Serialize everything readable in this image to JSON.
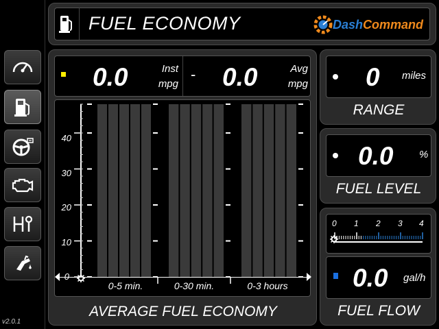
{
  "app": {
    "version": "v2.0.1",
    "brand_left": "Dash",
    "brand_right": "Command",
    "colors": {
      "accent_blue": "#2a7fd4",
      "accent_orange": "#f08a1c",
      "indicator_yellow": "#ffee00",
      "indicator_blue": "#1a6fe0"
    }
  },
  "header": {
    "title": "FUEL ECONOMY",
    "icon": "fuel-pump-icon"
  },
  "sidebar": {
    "items": [
      {
        "name": "gauge",
        "icon": "speedometer-icon",
        "active": false
      },
      {
        "name": "fuel",
        "icon": "fuel-pump-icon",
        "active": true
      },
      {
        "name": "driving",
        "icon": "steering-wheel-icon",
        "active": false
      },
      {
        "name": "engine",
        "icon": "engine-icon",
        "active": false
      },
      {
        "name": "transmission",
        "icon": "gear-shift-icon",
        "active": false
      },
      {
        "name": "fuel-nozzle",
        "icon": "fuel-nozzle-icon",
        "active": false
      }
    ]
  },
  "economy": {
    "inst_value": "0.0",
    "inst_label_1": "Inst",
    "inst_label_2": "mpg",
    "separator": "-",
    "avg_value": "0.0",
    "avg_label_1": "Avg",
    "avg_label_2": "mpg",
    "title": "AVERAGE FUEL ECONOMY",
    "y_ticks": [
      "40",
      "30",
      "20",
      "10",
      "0"
    ],
    "segments": [
      "0-5 min.",
      "0-30 min.",
      "0-3 hours"
    ]
  },
  "chart_data": {
    "type": "bar",
    "title": "AVERAGE FUEL ECONOMY",
    "ylim": [
      0,
      48
    ],
    "yticks": [
      0,
      10,
      20,
      30,
      40
    ],
    "series": [
      {
        "categories": [
          "0-5 min.",
          "0-30 min.",
          "0-3 hours"
        ],
        "values": [
          0,
          0,
          0
        ]
      }
    ]
  },
  "range": {
    "value": "0",
    "unit": "miles",
    "title": "RANGE"
  },
  "fuel_level": {
    "value": "0.0",
    "unit": "%",
    "title": "FUEL LEVEL"
  },
  "fuel_flow": {
    "scale": [
      "0",
      "1",
      "2",
      "3",
      "4"
    ],
    "value": "0.0",
    "unit": "gal/h",
    "title": "FUEL FLOW",
    "bar_level": 0
  }
}
